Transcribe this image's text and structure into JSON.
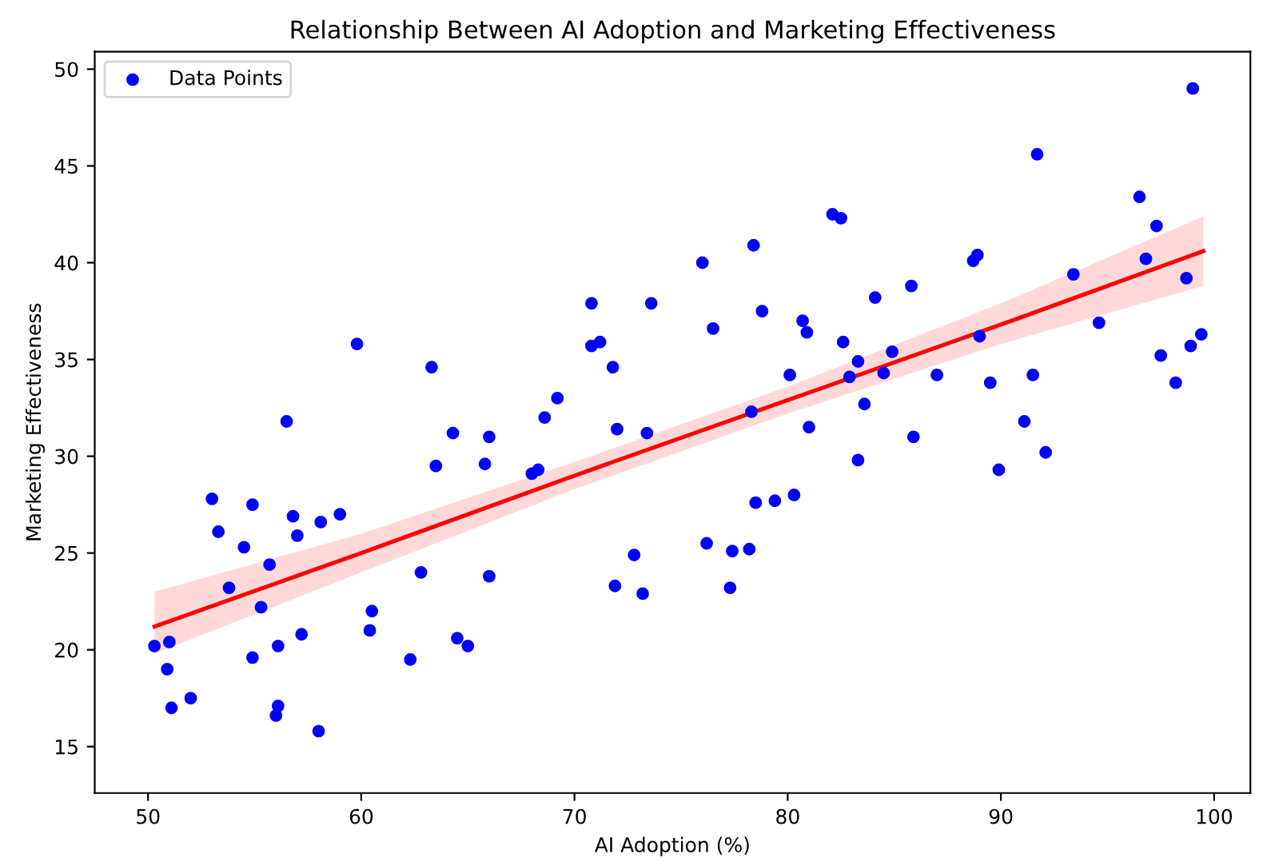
{
  "chart_data": {
    "type": "scatter",
    "title": "Relationship Between AI Adoption and Marketing Effectiveness",
    "xlabel": "AI Adoption (%)",
    "ylabel": "Marketing Effectiveness",
    "xlim": [
      47.5,
      101.7
    ],
    "xticks": [
      50,
      60,
      70,
      80,
      90,
      100
    ],
    "ylim": [
      12.6,
      50.9
    ],
    "yticks": [
      15,
      20,
      25,
      30,
      35,
      40,
      45,
      50
    ],
    "grid": false,
    "legend": "top left",
    "series": [
      {
        "name": "Data Points",
        "color": "#0000ff",
        "marker": "circle",
        "x": [
          50.3,
          50.9,
          51.0,
          51.1,
          52.0,
          53.0,
          53.3,
          53.8,
          54.5,
          54.9,
          54.9,
          55.3,
          55.7,
          56.0,
          56.1,
          56.1,
          56.5,
          56.8,
          57.0,
          57.2,
          58.0,
          58.1,
          59.0,
          59.8,
          60.4,
          60.5,
          62.3,
          62.8,
          63.3,
          63.5,
          64.3,
          64.5,
          65.0,
          65.8,
          66.0,
          66.0,
          68.0,
          68.3,
          68.6,
          69.2,
          70.8,
          70.8,
          71.2,
          71.8,
          72.0,
          71.9,
          72.8,
          73.2,
          73.4,
          73.6,
          76.0,
          76.2,
          76.5,
          77.3,
          77.4,
          78.2,
          78.3,
          78.4,
          78.5,
          78.8,
          79.4,
          80.1,
          80.3,
          80.7,
          80.9,
          81.0,
          82.1,
          82.5,
          82.6,
          82.9,
          83.3,
          83.3,
          83.6,
          84.1,
          84.5,
          84.9,
          85.8,
          85.9,
          87.0,
          88.7,
          88.9,
          89.0,
          89.5,
          89.9,
          91.1,
          91.5,
          91.7,
          92.1,
          93.4,
          94.6,
          96.5,
          96.8,
          97.3,
          97.5,
          98.2,
          98.7,
          98.9,
          99.0,
          99.4
        ],
        "values": [
          20.2,
          19.0,
          20.4,
          17.0,
          17.5,
          27.8,
          26.1,
          23.2,
          25.3,
          19.6,
          27.5,
          22.2,
          24.4,
          16.6,
          17.1,
          20.2,
          31.8,
          26.9,
          25.9,
          20.8,
          15.8,
          26.6,
          27.0,
          35.8,
          21.0,
          22.0,
          19.5,
          24.0,
          34.6,
          29.5,
          31.2,
          20.6,
          20.2,
          29.6,
          31.0,
          23.8,
          29.1,
          29.3,
          32.0,
          33.0,
          37.9,
          35.7,
          35.9,
          34.6,
          31.4,
          23.3,
          24.9,
          22.9,
          31.2,
          37.9,
          40.0,
          25.5,
          36.6,
          23.2,
          25.1,
          25.2,
          32.3,
          40.9,
          27.6,
          37.5,
          27.7,
          34.2,
          28.0,
          37.0,
          36.4,
          31.5,
          42.5,
          42.3,
          35.9,
          34.1,
          34.9,
          29.8,
          32.7,
          38.2,
          34.3,
          35.4,
          38.8,
          31.0,
          34.2,
          40.1,
          40.4,
          36.2,
          33.8,
          29.3,
          31.8,
          34.2,
          45.6,
          30.2,
          39.4,
          36.9,
          43.4,
          40.2,
          41.9,
          35.2,
          33.8,
          39.2,
          35.7,
          49.0,
          36.3
        ]
      },
      {
        "type": "line",
        "color": "#ff0000",
        "line_style": "solid",
        "marker": "none",
        "x": [
          50.3,
          60,
          70,
          80,
          90,
          99.5
        ],
        "values": [
          21.2,
          25.0,
          29.0,
          32.9,
          36.8,
          40.6
        ],
        "lower": [
          19.8,
          24.0,
          28.3,
          32.2,
          35.8,
          38.8
        ],
        "upper": [
          23.0,
          26.0,
          29.7,
          33.6,
          37.9,
          42.4
        ]
      }
    ]
  }
}
